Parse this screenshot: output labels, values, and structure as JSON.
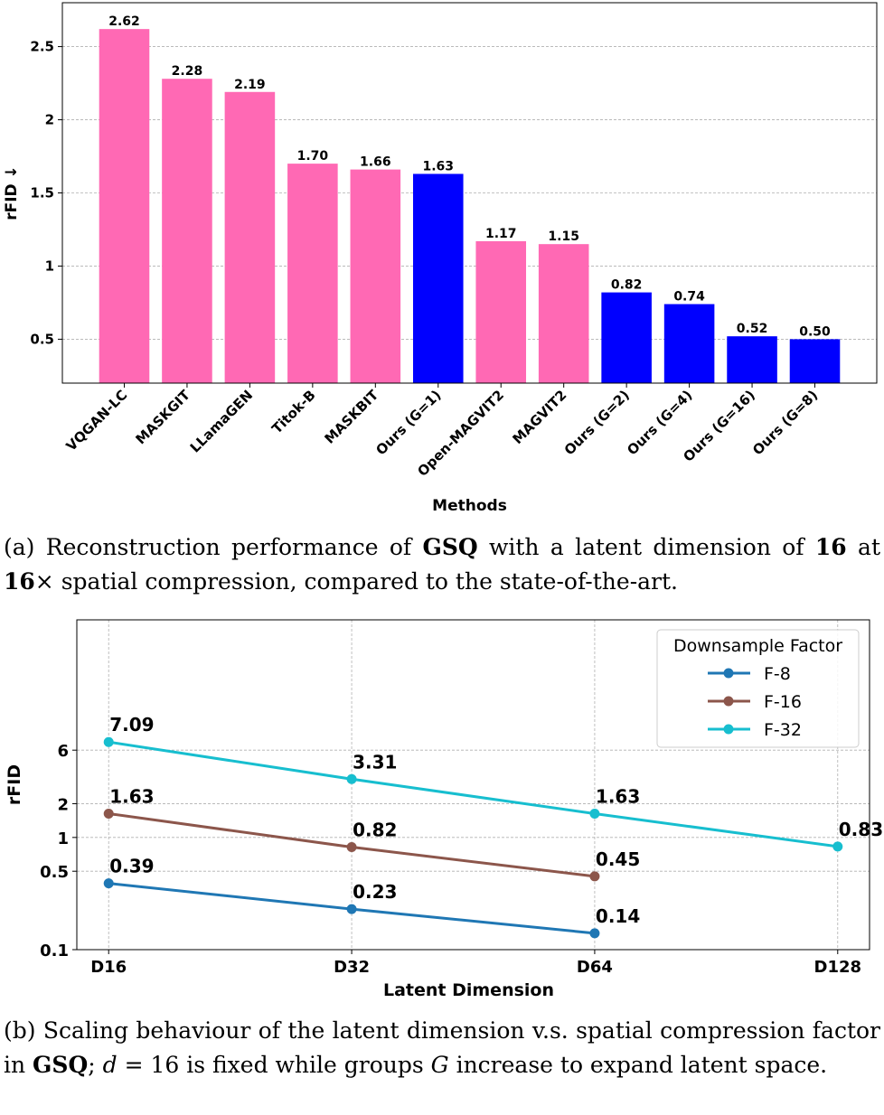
{
  "chart_data": [
    {
      "type": "bar",
      "categories": [
        "VQGAN-LC",
        "MASKGIT",
        "LLamaGEN",
        "Titok-B",
        "MASKBIT",
        "Ours (G=1)",
        "Open-MAGVIT2",
        "MAGVIT2",
        "Ours (G=2)",
        "Ours (G=4)",
        "Ours (G=16)",
        "Ours (G=8)"
      ],
      "values": [
        2.62,
        2.28,
        2.19,
        1.7,
        1.66,
        1.63,
        1.17,
        1.15,
        0.82,
        0.74,
        0.52,
        0.5
      ],
      "value_labels": [
        "2.62",
        "2.28",
        "2.19",
        "1.70",
        "1.66",
        "1.63",
        "1.17",
        "1.15",
        "0.82",
        "0.74",
        "0.52",
        "0.50"
      ],
      "colors": [
        "#ff69b4",
        "#ff69b4",
        "#ff69b4",
        "#ff69b4",
        "#ff69b4",
        "#0000ff",
        "#ff69b4",
        "#ff69b4",
        "#0000ff",
        "#0000ff",
        "#0000ff",
        "#0000ff"
      ],
      "xlabel": "Methods",
      "ylabel": "rFID ↓",
      "ylim": [
        0.2,
        2.8
      ],
      "yticks": [
        0.5,
        1.0,
        1.5,
        2.0,
        2.5
      ],
      "grid": true,
      "caption": [
        {
          "text": "(a) Reconstruction performance of "
        },
        {
          "text": "GSQ",
          "style": "bold"
        },
        {
          "text": " with a latent dimension of "
        },
        {
          "text": "16",
          "style": "bold"
        },
        {
          "text": " at "
        },
        {
          "text": "16",
          "style": "bold"
        },
        {
          "text": "× spatial compression, compared to the state-of-the-art."
        }
      ]
    },
    {
      "type": "line",
      "categories": [
        "D16",
        "D32",
        "D64",
        "D128"
      ],
      "series": [
        {
          "name": "F-8",
          "color": "#1f77b4",
          "values": [
            0.39,
            0.23,
            0.14,
            null
          ]
        },
        {
          "name": "F-16",
          "color": "#8c564b",
          "values": [
            1.63,
            0.82,
            0.45,
            null
          ]
        },
        {
          "name": "F-32",
          "color": "#17becf",
          "values": [
            7.09,
            3.31,
            1.63,
            0.83
          ]
        }
      ],
      "xlabel": "Latent Dimension",
      "ylabel": "rFID",
      "ylim": [
        0.1,
        87
      ],
      "yticks": [
        0.1,
        0.5,
        1,
        2,
        6
      ],
      "log_scale": true,
      "grid": true,
      "legend_title": "Downsample Factor",
      "legend_position": "upper right",
      "caption": [
        {
          "text": "(b) Scaling behaviour of the latent dimension v.s. spatial compression factor in "
        },
        {
          "text": "GSQ",
          "style": "bold"
        },
        {
          "text": "; "
        },
        {
          "text": "d",
          "style": "italic"
        },
        {
          "text": " = 16 is fixed while groups "
        },
        {
          "text": "G",
          "style": "italic"
        },
        {
          "text": " increase to expand latent space."
        }
      ]
    }
  ]
}
